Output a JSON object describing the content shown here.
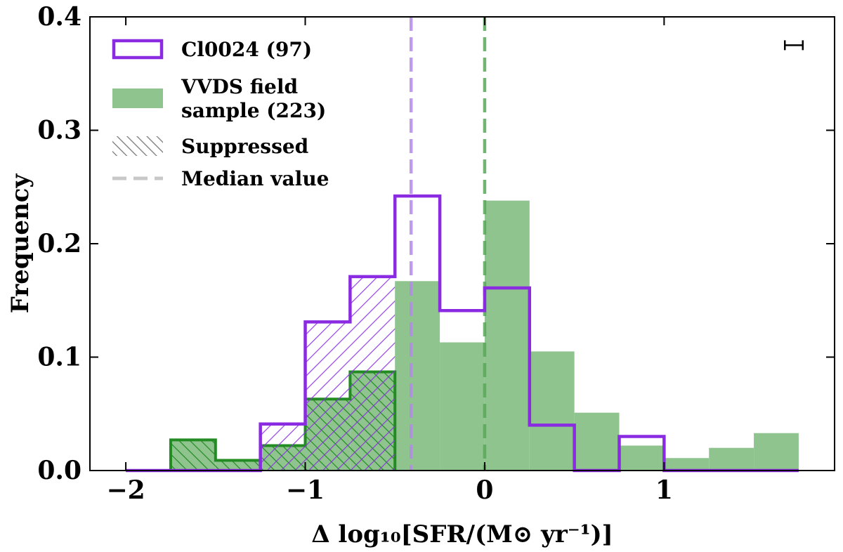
{
  "chart_data": {
    "type": "bar",
    "title": "",
    "xlabel": "Δ log₁₀[SFR/(M⊙ yr⁻¹)]",
    "ylabel": "Frequency",
    "xlim": [
      -2.2,
      1.95
    ],
    "ylim": [
      0,
      0.4
    ],
    "x_ticks": [
      -2,
      -1,
      0,
      1
    ],
    "x_tick_labels": [
      "−2",
      "−1",
      "0",
      "1"
    ],
    "y_ticks": [
      0.0,
      0.1,
      0.2,
      0.3,
      0.4
    ],
    "y_tick_labels": [
      "0.0",
      "0.1",
      "0.2",
      "0.3",
      "0.4"
    ],
    "bin_edges": [
      -2.0,
      -1.75,
      -1.5,
      -1.25,
      -1.0,
      -0.75,
      -0.5,
      -0.25,
      0.0,
      0.25,
      0.5,
      0.75,
      1.0,
      1.25,
      1.5,
      1.75
    ],
    "series": [
      {
        "name": "VVDS field sample (223)",
        "style": "filled",
        "color": "#8fc48f",
        "values": [
          0.0,
          0.027,
          0.009,
          0.022,
          0.063,
          0.087,
          0.167,
          0.113,
          0.238,
          0.105,
          0.051,
          0.022,
          0.011,
          0.02,
          0.033
        ],
        "suppressed_values": [
          0.0,
          0.027,
          0.009,
          0.022,
          0.063,
          0.087,
          0,
          0,
          0,
          0,
          0,
          0,
          0,
          0,
          0
        ],
        "hatch_color": "#228b22"
      },
      {
        "name": "Cl0024 (97)",
        "style": "step",
        "color": "#8a2be2",
        "values": [
          0.0,
          0.0,
          0.0,
          0.041,
          0.131,
          0.171,
          0.242,
          0.141,
          0.161,
          0.04,
          0.0,
          0.03,
          0.0,
          0.0,
          0.0
        ],
        "suppressed_values": [
          0.0,
          0.0,
          0.0,
          0.041,
          0.131,
          0.171,
          0,
          0,
          0,
          0,
          0,
          0,
          0,
          0,
          0
        ]
      }
    ],
    "medians": [
      {
        "name": "Cl0024 median",
        "x": -0.41,
        "color": "#b48be8"
      },
      {
        "name": "VVDS median",
        "x": 0.0,
        "color": "#5aa85a"
      }
    ],
    "legend": {
      "location": "upper-left",
      "entries": [
        {
          "label_lines": [
            "Cl0024 (97)"
          ],
          "kind": "step",
          "color": "#8a2be2"
        },
        {
          "label_lines": [
            "VVDS field",
            "sample (223)"
          ],
          "kind": "filled",
          "color": "#8fc48f"
        },
        {
          "label_lines": [
            "Suppressed"
          ],
          "kind": "hatch",
          "color": "#7a7a7a"
        },
        {
          "label_lines": [
            "Median value"
          ],
          "kind": "dashed",
          "color": "#c8c8c8"
        }
      ]
    },
    "error_bar": {
      "location": "top-right",
      "halfwidth": 0.05,
      "y": 0.375
    }
  }
}
